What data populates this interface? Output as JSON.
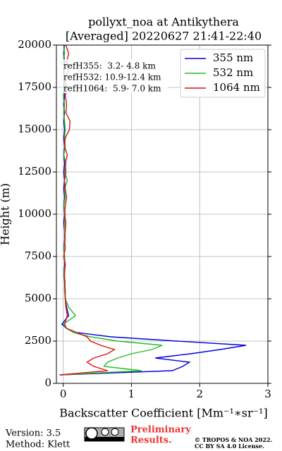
{
  "chart_data": {
    "type": "line",
    "title": "pollyxt_noa at Antikythera",
    "subtitle": "[Averaged] 20220627 21:41-22:40",
    "x_label": "Backscatter Coefficient [Mm⁻¹∗sr⁻¹]",
    "y_label": "Height (m)",
    "y": [
      500,
      750,
      1000,
      1250,
      1500,
      1750,
      2000,
      2250,
      2500,
      2750,
      3000,
      3250,
      3500,
      4000,
      4500,
      5000,
      5500,
      6000,
      6500,
      7000,
      7500,
      8000,
      8500,
      9000,
      9500,
      10000,
      10500,
      11000,
      11500,
      12000,
      12500,
      13000,
      13500,
      14000,
      14500,
      15000,
      15500,
      16000,
      16500,
      17000,
      17500,
      18000,
      18500,
      19000,
      19500,
      20000
    ],
    "series": [
      {
        "name": "355 nm",
        "color": "#0000dd",
        "values": [
          -0.05,
          1.6,
          1.75,
          1.85,
          1.35,
          1.87,
          2.3,
          2.68,
          1.66,
          0.7,
          0.2,
          0.05,
          -0.02,
          0.08,
          0.05,
          0.03,
          0.02,
          0.02,
          0.01,
          0.02,
          0.02,
          0.01,
          0.02,
          0.02,
          0.01,
          0.02,
          0.01,
          0.02,
          0.01,
          0.02,
          0.01,
          0.02,
          0.01,
          0.02,
          0.01,
          0.02,
          0.01,
          0.02,
          0.01,
          0.02,
          0.01,
          0.02,
          0.01,
          0.02,
          0.01,
          0.02
        ]
      },
      {
        "name": "532 nm",
        "color": "#22bb22",
        "values": [
          -0.05,
          1.15,
          0.6,
          0.65,
          0.8,
          1.0,
          1.3,
          1.45,
          0.8,
          0.4,
          0.15,
          0.05,
          0.0,
          0.18,
          0.08,
          0.03,
          0.02,
          0.03,
          0.01,
          0.03,
          0.02,
          0.01,
          0.03,
          0.02,
          0.02,
          0.03,
          0.01,
          0.03,
          0.02,
          0.06,
          0.02,
          0.04,
          0.01,
          0.03,
          0.02,
          0.03,
          0.02,
          0.01,
          0.02,
          0.0,
          0.03,
          0.01,
          0.02,
          0.0,
          0.02,
          0.01
        ]
      },
      {
        "name": "1064 nm",
        "color": "#dd1111",
        "values": [
          -0.05,
          0.65,
          0.45,
          0.35,
          0.45,
          0.65,
          0.75,
          0.55,
          0.4,
          0.35,
          0.2,
          0.05,
          0.02,
          0.06,
          0.04,
          0.03,
          0.03,
          0.02,
          0.02,
          0.03,
          0.01,
          0.03,
          0.02,
          0.03,
          0.04,
          0.02,
          0.03,
          0.05,
          0.03,
          0.02,
          0.04,
          0.03,
          0.06,
          0.02,
          0.03,
          0.09,
          0.1,
          0.04,
          0.05,
          0.03,
          0.06,
          0.02,
          0.07,
          0.05,
          0.08,
          0.04
        ]
      }
    ],
    "xlim": [
      -0.1,
      3
    ],
    "xticks": [
      0,
      1,
      2,
      3
    ],
    "ylim": [
      0,
      20000
    ],
    "yticks": [
      0,
      2500,
      5000,
      7500,
      10000,
      12500,
      15000,
      17500,
      20000
    ],
    "grid": true,
    "legend": "upper right",
    "annotations": [
      "refH355:  3.2- 4.8 km",
      "refH532: 10.9-12.4 km",
      "refH1064:  5.9- 7.0 km"
    ],
    "footer": {
      "version": "Version: 3.5",
      "method": "Method: Klett",
      "notice": [
        "Preliminary",
        "Results."
      ],
      "copyright": [
        "© TROPOS & NOA 2022.",
        "CC BY SA 4.0 License."
      ]
    }
  }
}
